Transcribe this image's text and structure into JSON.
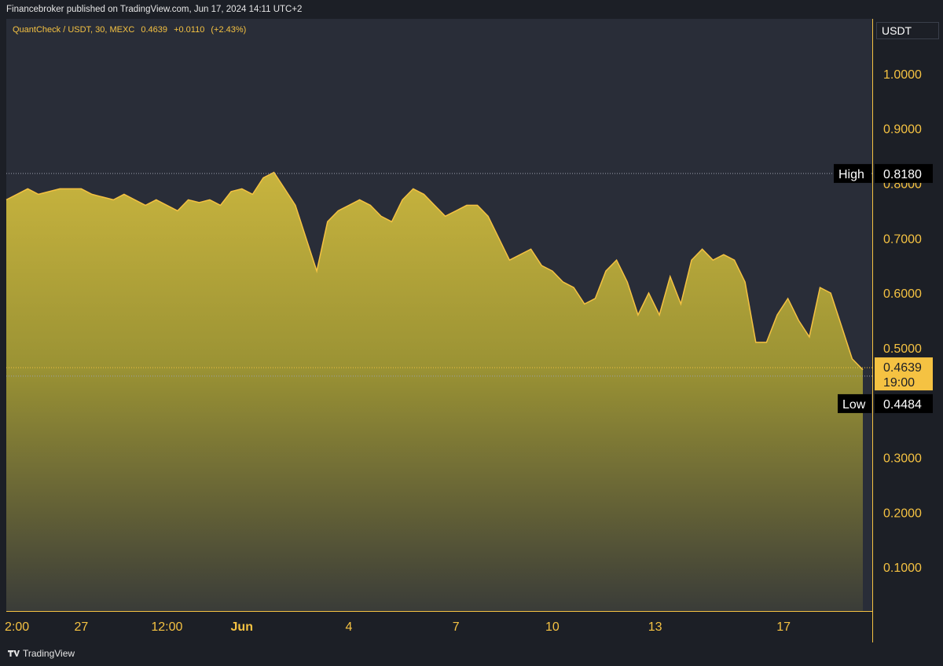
{
  "header": {
    "published_text": "Financebroker published on TradingView.com, Jun 17, 2024 14:11 UTC+2"
  },
  "symbol": {
    "name": "QuantCheck / USDT, 30, MEXC",
    "last": "0.4639",
    "change": "+0.0110",
    "change_pct": "(+2.43%)"
  },
  "price_scale": {
    "unit": "USDT",
    "current_price": "0.4639",
    "countdown": "19:00",
    "high_label": "High",
    "high_value": "0.8180",
    "low_label": "Low",
    "low_value": "0.4484"
  },
  "footer": {
    "brand": "TradingView"
  },
  "colors": {
    "line": "#f5c242",
    "background": "#292d38",
    "axis_text": "#f5c242"
  },
  "chart_data": {
    "type": "area",
    "ylim": [
      0.02,
      1.1
    ],
    "y_ticks": [
      "1.0000",
      "0.9000",
      "0.8000",
      "0.7000",
      "0.6000",
      "0.5000",
      "0.3000",
      "0.2000",
      "0.1000"
    ],
    "y_tick_values": [
      1.0,
      0.9,
      0.8,
      0.7,
      0.6,
      0.5,
      0.3,
      0.2,
      0.1
    ],
    "x_ticks": [
      "2:00",
      "27",
      "12:00",
      "Jun",
      "4",
      "7",
      "10",
      "13",
      "17"
    ],
    "x_tick_values": [
      0.5,
      3.5,
      7.5,
      11,
      16,
      21,
      25.5,
      30.3,
      36.3
    ],
    "x_tick_bold": [
      false,
      false,
      false,
      true,
      false,
      false,
      false,
      false,
      false
    ],
    "x_range": [
      0,
      40
    ],
    "high": 0.818,
    "low": 0.4484,
    "current": 0.4639,
    "series": [
      {
        "x": [
          0,
          0.5,
          1,
          1.5,
          2,
          2.5,
          3,
          3.5,
          4,
          4.5,
          5,
          5.5,
          6,
          6.5,
          7,
          7.5,
          8,
          8.5,
          9,
          9.5,
          10,
          10.5,
          11,
          11.5,
          12,
          12.5,
          13,
          13.5,
          14,
          14.5,
          15,
          15.5,
          16,
          16.5,
          17,
          17.5,
          18,
          18.5,
          19,
          19.5,
          20,
          20.5,
          21,
          21.5,
          22,
          22.5,
          23,
          23.5,
          24,
          24.5,
          25,
          25.5,
          26,
          26.5,
          27,
          27.5,
          28,
          28.5,
          29,
          29.5,
          30,
          30.5,
          31,
          31.5,
          32,
          32.5,
          33,
          33.5,
          34,
          34.5,
          35,
          35.5,
          36,
          36.5,
          37,
          37.5,
          38,
          38.5,
          39,
          39.5,
          40
        ],
        "values": [
          0.77,
          0.78,
          0.79,
          0.78,
          0.785,
          0.79,
          0.79,
          0.79,
          0.78,
          0.775,
          0.77,
          0.78,
          0.77,
          0.76,
          0.77,
          0.76,
          0.75,
          0.77,
          0.765,
          0.77,
          0.76,
          0.785,
          0.79,
          0.78,
          0.81,
          0.82,
          0.79,
          0.76,
          0.7,
          0.64,
          0.73,
          0.75,
          0.76,
          0.77,
          0.76,
          0.74,
          0.73,
          0.77,
          0.79,
          0.78,
          0.76,
          0.74,
          0.75,
          0.76,
          0.76,
          0.74,
          0.7,
          0.66,
          0.67,
          0.68,
          0.65,
          0.64,
          0.62,
          0.61,
          0.58,
          0.59,
          0.64,
          0.66,
          0.62,
          0.56,
          0.6,
          0.56,
          0.63,
          0.58,
          0.66,
          0.68,
          0.66,
          0.67,
          0.66,
          0.62,
          0.51,
          0.51,
          0.56,
          0.59,
          0.55,
          0.52,
          0.61,
          0.6,
          0.54,
          0.48,
          0.46
        ]
      }
    ]
  }
}
